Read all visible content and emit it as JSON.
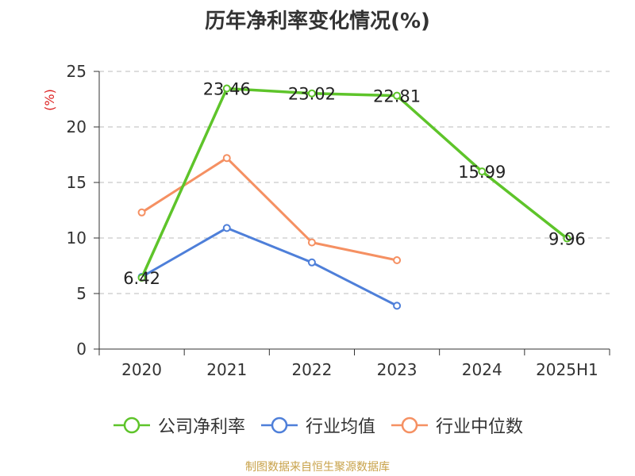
{
  "chart_data": {
    "type": "line",
    "title": "历年净利率变化情况(%)",
    "ylabel": "(%)",
    "categories": [
      "2020",
      "2021",
      "2022",
      "2023",
      "2024",
      "2025H1"
    ],
    "ylim": [
      0,
      25
    ],
    "yticks": [
      0,
      5,
      10,
      15,
      20,
      25
    ],
    "grid": true,
    "legend_position": "bottom",
    "series": [
      {
        "name": "公司净利率",
        "color": "#5ec42a",
        "values": [
          6.42,
          23.46,
          23.02,
          22.81,
          15.99,
          9.96
        ],
        "labels": [
          "6.42",
          "23.46",
          "23.02",
          "22.81",
          "15.99",
          "9.96"
        ]
      },
      {
        "name": "行业均值",
        "color": "#4e7fd9",
        "values": [
          6.5,
          10.9,
          7.8,
          3.9,
          null,
          null
        ]
      },
      {
        "name": "行业中位数",
        "color": "#f59062",
        "values": [
          12.3,
          17.2,
          9.6,
          8.0,
          null,
          null
        ]
      }
    ]
  },
  "source": "制图数据来自恒生聚源数据库"
}
